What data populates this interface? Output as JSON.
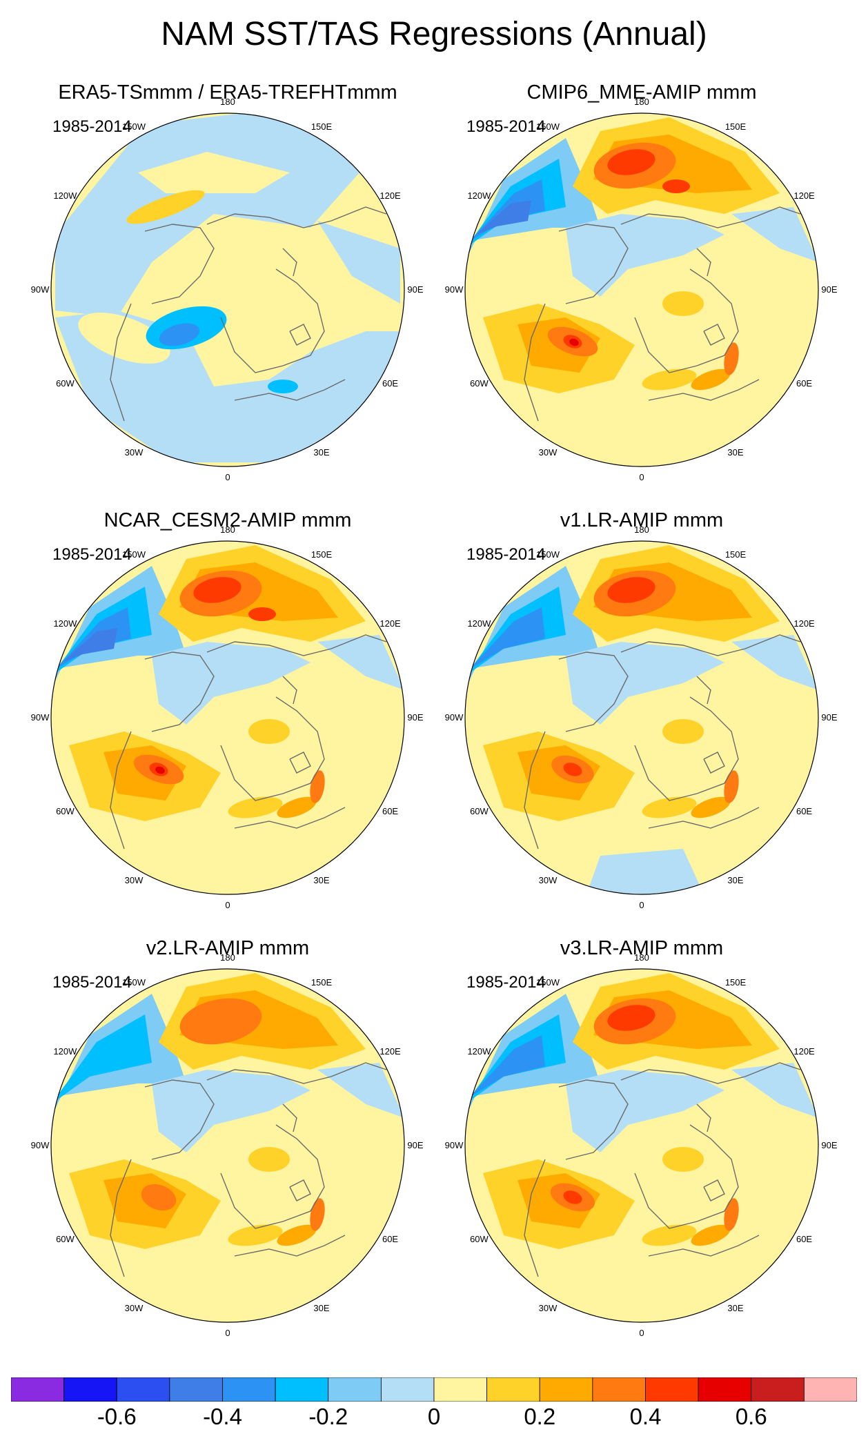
{
  "title": "NAM SST/TAS Regressions (Annual)",
  "panels": [
    {
      "title": "ERA5-TSmmm / ERA5-TREFHTmmm",
      "period": "1985-2014",
      "pattern": "obs"
    },
    {
      "title": "CMIP6_MME-AMIP  mmm",
      "period": "1985-2014",
      "pattern": "strong"
    },
    {
      "title": "NCAR_CESM2-AMIP  mmm",
      "period": "1985-2014",
      "pattern": "strong2"
    },
    {
      "title": "v1.LR-AMIP  mmm",
      "period": "1985-2014",
      "pattern": "moderate"
    },
    {
      "title": "v2.LR-AMIP  mmm",
      "period": "1985-2014",
      "pattern": "weak"
    },
    {
      "title": "v3.LR-AMIP  mmm",
      "period": "1985-2014",
      "pattern": "moderate2"
    }
  ],
  "longitude_labels": {
    "top": "180",
    "top_left": "150W",
    "top_right": "150E",
    "upper_left": "120W",
    "upper_right": "120E",
    "left": "90W",
    "right": "90E",
    "lower_left": "60W",
    "lower_right": "60E",
    "bottom_left": "30W",
    "bottom_right": "30E",
    "bottom": "0"
  },
  "colorbar": {
    "colors": [
      "#8a2be2",
      "#1515f5",
      "#2b4ff0",
      "#3f7ee6",
      "#2c93f5",
      "#00bfff",
      "#7ecbf5",
      "#b4def5",
      "#fff5a0",
      "#ffd22a",
      "#ffaa00",
      "#ff7a10",
      "#ff3a00",
      "#e60000",
      "#c81e1e",
      "#ffb4b4"
    ],
    "labels": [
      "-0.6",
      "-0.4",
      "-0.2",
      "0",
      "0.2",
      "0.4",
      "0.6"
    ],
    "label_values": [
      -0.6,
      -0.4,
      -0.2,
      0,
      0.2,
      0.4,
      0.6
    ],
    "levels": [
      -0.7,
      -0.6,
      -0.5,
      -0.4,
      -0.3,
      -0.2,
      -0.1,
      0,
      0.1,
      0.2,
      0.3,
      0.4,
      0.5,
      0.6,
      0.7
    ]
  }
}
